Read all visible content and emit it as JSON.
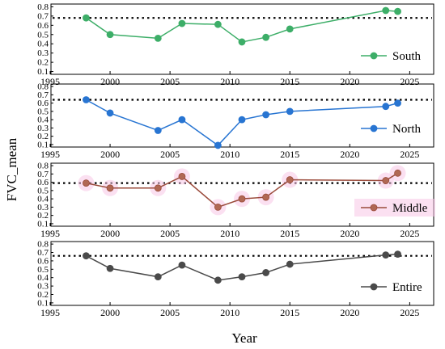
{
  "chart_data": {
    "type": "line",
    "xlabel": "Year",
    "ylabel": "FVC_mean",
    "xlim": [
      1995,
      2027
    ],
    "x_ticks": [
      1995,
      2000,
      2005,
      2010,
      2015,
      2020,
      2025
    ],
    "y_ticks": [
      0.1,
      0.2,
      0.3,
      0.4,
      0.5,
      0.6,
      0.7,
      0.8
    ],
    "ylim": [
      0.07,
      0.83
    ],
    "grid": false,
    "legend_placement": "bottom-right",
    "panels": [
      {
        "name": "South",
        "color": "#3dae68",
        "marker_color": "#3dae68",
        "reference_line": 0.68,
        "x": [
          1998,
          2000,
          2004,
          2006,
          2009,
          2011,
          2013,
          2015,
          2023,
          2024
        ],
        "y": [
          0.68,
          0.5,
          0.46,
          0.62,
          0.61,
          0.42,
          0.47,
          0.56,
          0.76,
          0.75
        ]
      },
      {
        "name": "North",
        "color": "#2875d2",
        "marker_color": "#2875d2",
        "reference_line": 0.64,
        "x": [
          1998,
          2000,
          2004,
          2006,
          2009,
          2011,
          2013,
          2015,
          2023,
          2024
        ],
        "y": [
          0.64,
          0.48,
          0.27,
          0.4,
          0.09,
          0.4,
          0.46,
          0.5,
          0.56,
          0.6
        ]
      },
      {
        "name": "Middle",
        "color": "#9a4a3a",
        "marker_color": "#b06854",
        "reference_line": 0.59,
        "x": [
          1998,
          2000,
          2004,
          2006,
          2009,
          2011,
          2013,
          2015,
          2023,
          2024
        ],
        "y": [
          0.59,
          0.53,
          0.53,
          0.67,
          0.3,
          0.4,
          0.42,
          0.63,
          0.62,
          0.71
        ]
      },
      {
        "name": "Entire",
        "color": "#4a4a4a",
        "marker_color": "#4a4a4a",
        "reference_line": 0.66,
        "x": [
          1998,
          2000,
          2004,
          2006,
          2009,
          2011,
          2013,
          2015,
          2023,
          2024
        ],
        "y": [
          0.66,
          0.51,
          0.41,
          0.55,
          0.37,
          0.41,
          0.46,
          0.56,
          0.67,
          0.68
        ]
      }
    ]
  }
}
